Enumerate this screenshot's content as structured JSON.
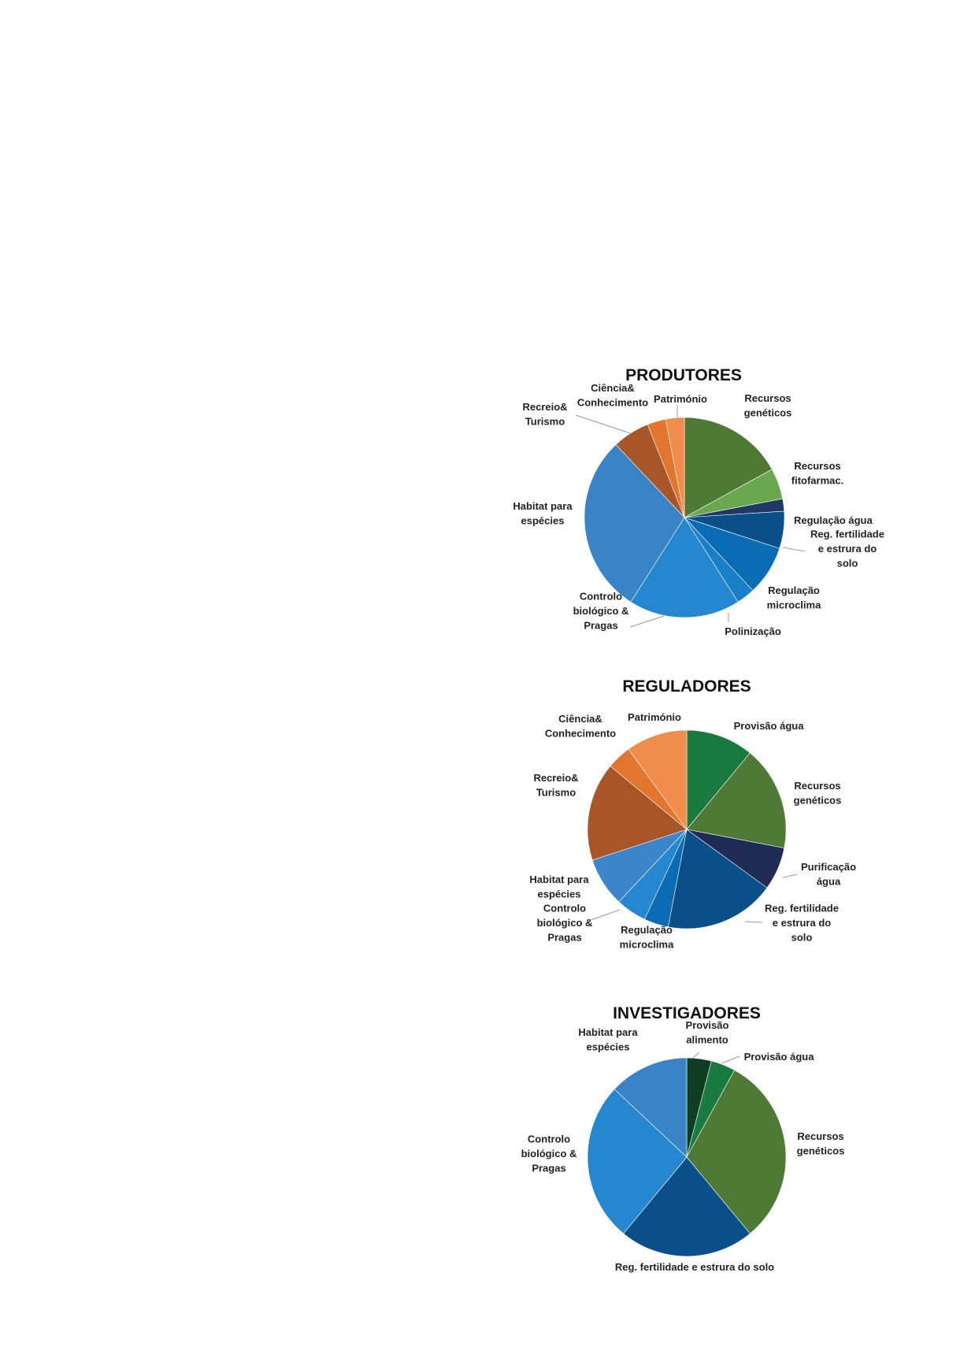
{
  "chart_data": [
    {
      "type": "pie",
      "title": "PRODUTORES",
      "start": "12 o'clock",
      "direction": "clockwise",
      "slices": [
        {
          "label": "Recursos genéticos",
          "value": 17,
          "color": "#4e7a36"
        },
        {
          "label": "Recursos fitofarmac.",
          "value": 5,
          "color": "#6aa84f"
        },
        {
          "label": "Regulação água",
          "value": 2,
          "color": "#1f3864"
        },
        {
          "label": "Reg. fertilidade e estrura do solo",
          "value": 6,
          "color": "#0b4f8a"
        },
        {
          "label": "Regulação microclima",
          "value": 8,
          "color": "#0b6bb5"
        },
        {
          "label": "Polinização",
          "value": 3,
          "color": "#1a7fc9"
        },
        {
          "label": "Controlo biológico & Pragas",
          "value": 18,
          "color": "#2587d0"
        },
        {
          "label": "Habitat para espécies",
          "value": 29,
          "color": "#3884c7"
        },
        {
          "label": "Recreio& Turismo",
          "value": 6,
          "color": "#a85628"
        },
        {
          "label": "Ciência& Conhecimento",
          "value": 3,
          "color": "#e2762e"
        },
        {
          "label": "Património",
          "value": 3,
          "color": "#f08d4c"
        }
      ]
    },
    {
      "type": "pie",
      "title": "REGULADORES",
      "start": "12 o'clock",
      "direction": "clockwise",
      "slices": [
        {
          "label": "Provisão água",
          "value": 11,
          "color": "#187a3e"
        },
        {
          "label": "Recursos genéticos",
          "value": 17,
          "color": "#4e7a36"
        },
        {
          "label": "Purificação água",
          "value": 7,
          "color": "#1f2a55"
        },
        {
          "label": "Reg. fertilidade e estrura do solo",
          "value": 18,
          "color": "#0b4f8a"
        },
        {
          "label": "Regulação microclima",
          "value": 4,
          "color": "#0b6bb5"
        },
        {
          "label": "Controlo biológico & Pragas",
          "value": 5,
          "color": "#2587d0"
        },
        {
          "label": "Habitat para espécies",
          "value": 8,
          "color": "#3b86cb"
        },
        {
          "label": "Recreio& Turismo",
          "value": 16,
          "color": "#a85628"
        },
        {
          "label": "Ciência& Conhecimento",
          "value": 4,
          "color": "#e2762e"
        },
        {
          "label": "Património",
          "value": 10,
          "color": "#f08d4c"
        }
      ]
    },
    {
      "type": "pie",
      "title": "INVESTIGADORES",
      "start": "12 o'clock",
      "direction": "clockwise",
      "slices": [
        {
          "label": "Provisão alimento",
          "value": 4,
          "color": "#0f3d22"
        },
        {
          "label": "Provisão água",
          "value": 4,
          "color": "#187a3e"
        },
        {
          "label": "Recursos genéticos",
          "value": 31,
          "color": "#4e7a36"
        },
        {
          "label": "Reg. fertilidade e estrura do solo",
          "value": 22,
          "color": "#0b4f8a"
        },
        {
          "label": "Controlo biológico & Pragas",
          "value": 26,
          "color": "#2587d0"
        },
        {
          "label": "Habitat para espécies",
          "value": 13,
          "color": "#3884c7"
        }
      ]
    }
  ]
}
